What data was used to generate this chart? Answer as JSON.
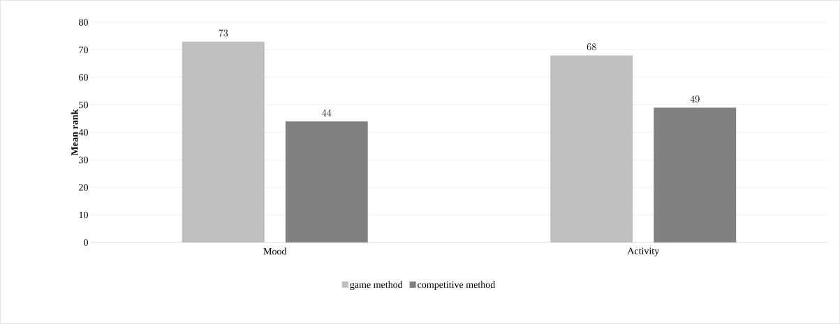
{
  "chart_data": {
    "type": "bar",
    "ylabel": "Mean rank",
    "categories": [
      "Mood",
      "Activity"
    ],
    "series": [
      {
        "name": "game method",
        "color": "#bfbfbf",
        "values": [
          73,
          68
        ]
      },
      {
        "name": "competitive method",
        "color": "#808080",
        "values": [
          44,
          49
        ]
      }
    ],
    "ylim": [
      0,
      80
    ],
    "yticks": [
      0,
      10,
      20,
      30,
      40,
      50,
      60,
      70,
      80
    ],
    "grid": "y",
    "legend": "bottom",
    "data_labels": true
  }
}
